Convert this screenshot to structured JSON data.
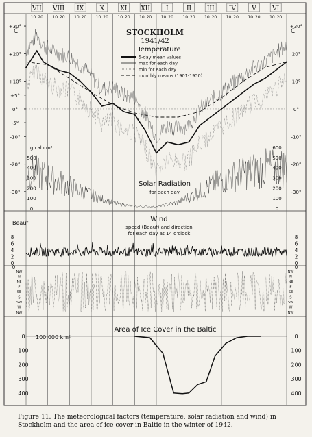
{
  "caption": {
    "figure_label": "Figure 11.",
    "text": "The meteorological factors (temperature, solar radiation and wind) in Stockholm and the area of ice cover in Baltic in the winter of 1942."
  },
  "months": [
    "VII",
    "VIII",
    "IX",
    "X",
    "XI",
    "XII",
    "I",
    "II",
    "III",
    "IV",
    "V",
    "VI"
  ],
  "day_ticks": [
    "10",
    "20"
  ],
  "chart_data": [
    {
      "type": "line",
      "title": "STOCKHOLM",
      "subtitle": "1941/42",
      "section_title": "Temperature",
      "legend": [
        "5-day mean values",
        "max for each day",
        "min for each day",
        "monthly means (1901-1930)"
      ],
      "unit": "C",
      "y_ticks": [
        "+30°",
        "+20°",
        "+10°",
        "+5°",
        "0°",
        "-5°",
        "-10°",
        "-20°",
        "-30°"
      ],
      "right_ticks": [
        "+30°",
        "20°",
        "10°",
        "0°",
        "-10°",
        "-20°",
        "-30°"
      ],
      "ylim": [
        -35,
        32
      ],
      "series": [
        {
          "name": "5-day mean values",
          "x": [
            0,
            0.5,
            0.8,
            1,
            1.5,
            2,
            2.5,
            3,
            3.5,
            4,
            4.5,
            5,
            5.5,
            6,
            6.5,
            7,
            7.5,
            8,
            8.5,
            9,
            9.5,
            10,
            10.5,
            11,
            11.5,
            12
          ],
          "y": [
            15,
            21,
            17,
            16,
            14,
            13,
            10,
            6,
            1,
            2,
            -1,
            -2,
            -8,
            -16,
            -12,
            -13,
            -12,
            -6,
            -3,
            0,
            3,
            6,
            9,
            11,
            14,
            17
          ]
        },
        {
          "name": "monthly means (1901-1930)",
          "x": [
            0,
            1,
            2,
            3,
            4,
            5,
            6,
            7,
            8,
            9,
            10,
            11,
            12
          ],
          "y": [
            17,
            16,
            11,
            6,
            1.5,
            -1.5,
            -3,
            -3,
            -1,
            4,
            10,
            15,
            17
          ]
        }
      ]
    },
    {
      "type": "line",
      "title": "Solar Radiation",
      "subtitle": "for each day",
      "unit": "g cal cm²",
      "y_ticks": [
        "600",
        "500",
        "400",
        "300",
        "200",
        "100",
        "0"
      ],
      "ylim": [
        0,
        620
      ],
      "series": [
        {
          "name": "for each day",
          "x": [
            0,
            1,
            2,
            3,
            4,
            5,
            6,
            7,
            8,
            9,
            10,
            11,
            12
          ],
          "y": [
            520,
            420,
            300,
            180,
            70,
            25,
            20,
            80,
            230,
            380,
            480,
            540,
            560
          ]
        }
      ]
    },
    {
      "type": "line",
      "title": "Wind",
      "subtitle": "speed (Beauf) and direction for each day at 14 o'clock",
      "unit": "Beauf",
      "y_ticks": [
        "8",
        "6",
        "4",
        "2",
        "0"
      ],
      "ylim": [
        0,
        8
      ],
      "direction_labels": [
        "NW",
        "N",
        "NE",
        "E",
        "SE",
        "S",
        "SW",
        "W",
        "NW"
      ]
    },
    {
      "type": "area",
      "title": "Area of Ice Cover in the Baltic",
      "unit": "100 000 km²",
      "y_ticks": [
        "0",
        "100",
        "200",
        "300",
        "400"
      ],
      "ylim": [
        0,
        430
      ],
      "series": [
        {
          "name": "Area of Ice Cover in the Baltic",
          "x": [
            5,
            5.7,
            6.3,
            6.8,
            7.2,
            7.5,
            7.9,
            8.3,
            8.7,
            9.2,
            9.7,
            10.2,
            10.8
          ],
          "y": [
            0,
            10,
            120,
            400,
            405,
            400,
            340,
            320,
            140,
            50,
            10,
            0,
            0
          ]
        }
      ]
    }
  ]
}
